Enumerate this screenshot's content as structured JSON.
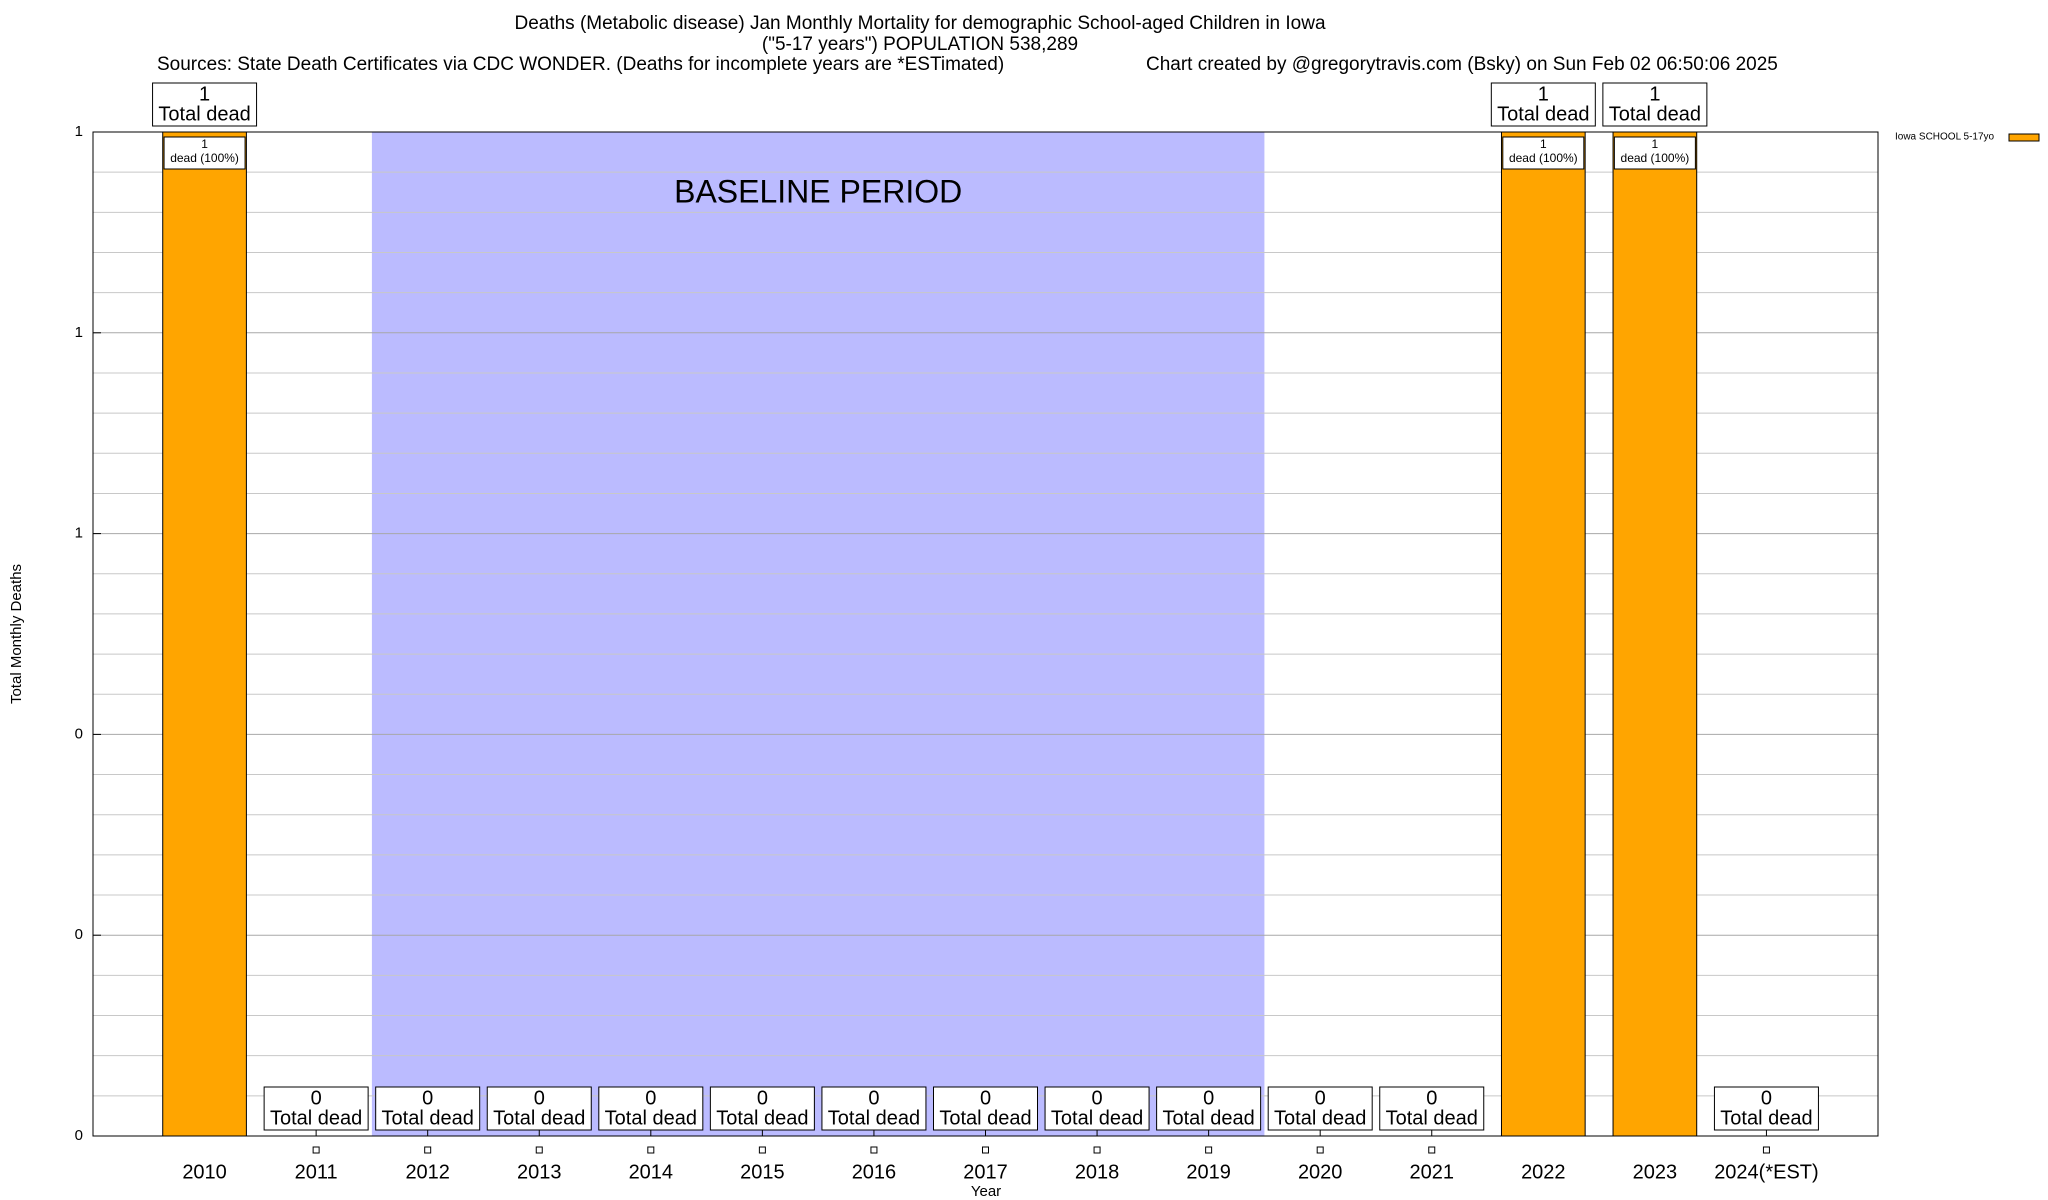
{
  "chart_data": {
    "type": "bar",
    "title": "Deaths (Metabolic disease) Jan Monthly Mortality for demographic School-aged Children in Iowa",
    "subtitle": "(\"5-17 years\") POPULATION 538,289",
    "sources": "Sources: State Death Certificates via CDC WONDER. (Deaths for incomplete years are *ESTimated)",
    "credit": "Chart created by @gregorytravis.com (Bsky) on Sun Feb 02 06:50:06 2025",
    "x_label": "Year",
    "y_label": "Total Monthly Deaths",
    "categories": [
      "2010",
      "2011",
      "2012",
      "2013",
      "2014",
      "2015",
      "2016",
      "2017",
      "2018",
      "2019",
      "2020",
      "2021",
      "2022",
      "2023",
      "2024(*EST)"
    ],
    "series": [
      {
        "name": "Iowa SCHOOL 5-17yo",
        "color": "#ffa500",
        "values": [
          1,
          0,
          0,
          0,
          0,
          0,
          0,
          0,
          0,
          0,
          0,
          0,
          1,
          1,
          0
        ]
      }
    ],
    "total_label": "Total dead",
    "share_label": "dead (100%)",
    "ylim": [
      0,
      1
    ],
    "yticks": [
      0,
      {
        "value": 0.2,
        "label": "0"
      },
      {
        "value": 0.4,
        "label": "0"
      },
      {
        "value": 0.6,
        "label": "1"
      },
      {
        "value": 0.8,
        "label": "1"
      },
      1
    ],
    "minor_yticks": [
      0.04,
      0.08,
      0.12,
      0.16,
      0.24,
      0.28,
      0.32,
      0.36,
      0.44,
      0.48,
      0.52,
      0.56,
      0.64,
      0.68,
      0.72,
      0.76,
      0.84,
      0.88,
      0.92,
      0.96
    ],
    "grid": true,
    "baseline": {
      "label": "BASELINE PERIOD",
      "start": "2012",
      "end": "2019",
      "color": "#bbbbff"
    },
    "legend": "top-right"
  }
}
